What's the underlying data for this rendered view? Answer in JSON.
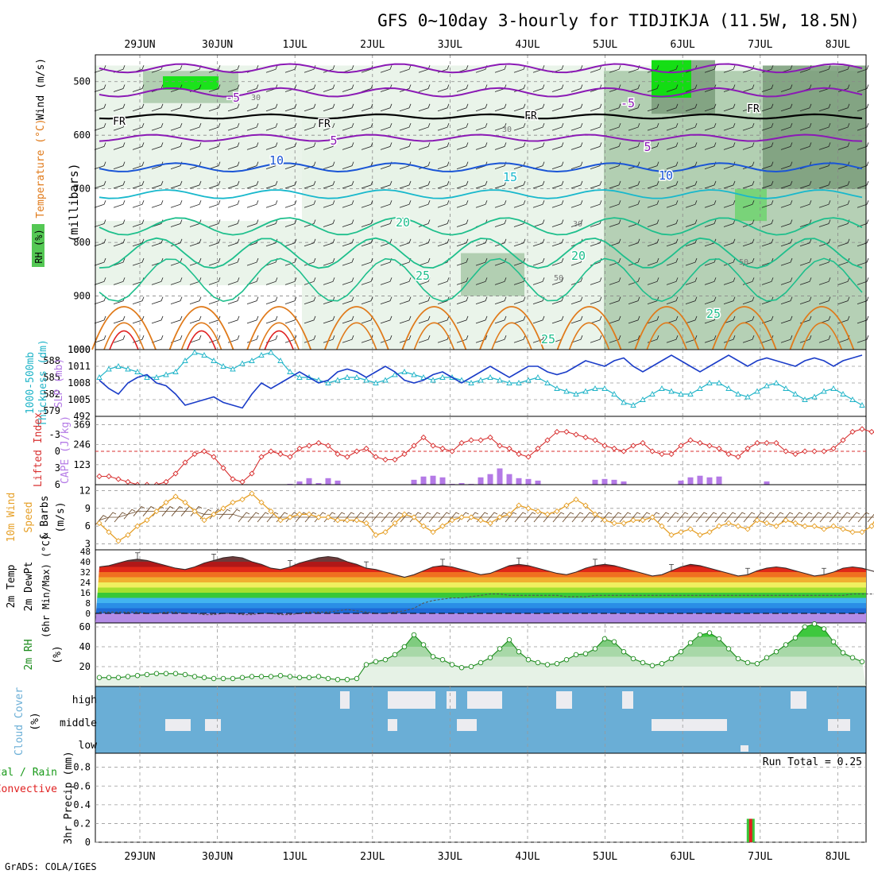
{
  "title": "GFS 0~10day 3-hourly for TIDJIKJA (11.5W, 18.5N)",
  "footer": "GrADS: COLA/IGES",
  "dates": [
    "29JUN",
    "30JUN",
    "1JUL",
    "2JUL",
    "3JUL",
    "4JUL",
    "5JUL",
    "6JUL",
    "7JUL",
    "8JUL"
  ],
  "colors": {
    "rh_light": "#e6f2e6",
    "rh_mid": "#a8c8a8",
    "rh_dark": "#7a9c7a",
    "rh_green": "#6fd46f",
    "rh_bright": "#00e600",
    "purple": "#8b1ab5",
    "blue": "#1a55d6",
    "cyan": "#18b8cc",
    "teal": "#1ebf8c",
    "orange": "#e07a1a",
    "red": "#e02020",
    "slp": "#1a3cc8",
    "thick": "#20b4c8",
    "li": "#d83030",
    "cape": "#b47ae6",
    "wind_speed": "#e6a028",
    "cloud_bg": "#6aaed6"
  },
  "chart_data": [
    {
      "type": "heatmap",
      "panel": "profile",
      "ylabel": "(millibars)",
      "labels_left": [
        "Wind (m/s)",
        "Temperature (°C)",
        "RH (%)"
      ],
      "yticks": [
        500,
        600,
        700,
        800,
        900,
        1000
      ],
      "ylim": [
        450,
        1000
      ],
      "temperature_contour_labels": [
        "-5",
        "-5",
        "5",
        "5",
        "10",
        "10",
        "15",
        "20",
        "20",
        "25",
        "25",
        "25"
      ],
      "rh_contour_labels": [
        "30",
        "30",
        "30",
        "50",
        "50"
      ],
      "freezing_level_label": "FR",
      "freezing_level_mb": 565
    },
    {
      "type": "line",
      "panel": "slp_thickness",
      "labels_left": [
        "1000-500mb",
        "Thickness (dm)",
        "SLP (mb)"
      ],
      "y_thickness_ticks": [
        579,
        582,
        585,
        588
      ],
      "y_slp_ticks": [
        1005,
        1008,
        1011
      ],
      "top_tick": "1000",
      "bottom_tick": "492",
      "series": [
        {
          "name": "SLP (mb)",
          "values": [
            1008.5,
            1007,
            1006,
            1008,
            1009,
            1009.5,
            1008,
            1007.5,
            1006,
            1004,
            1004.5,
            1005,
            1005.5,
            1004.5,
            1004,
            1003.5,
            1006,
            1008,
            1007,
            1008,
            1009,
            1010,
            1009,
            1008,
            1008.5,
            1010,
            1010.5,
            1010,
            1009,
            1010,
            1011,
            1010,
            1008.5,
            1008,
            1008.5,
            1009.5,
            1010,
            1009,
            1008,
            1009,
            1010,
            1011,
            1010,
            1009,
            1010,
            1011,
            1011,
            1010,
            1009.5,
            1010,
            1011,
            1012,
            1011.5,
            1011,
            1012,
            1012.5,
            1011,
            1010,
            1011,
            1012,
            1013,
            1012,
            1011,
            1010,
            1011,
            1012,
            1013,
            1012,
            1011,
            1012,
            1012.5,
            1012,
            1011.5,
            1011,
            1012,
            1012.5,
            1012,
            1011,
            1012,
            1012.5,
            1013
          ]
        },
        {
          "name": "1000-500mb Thickness (dm)",
          "values": [
            585,
            586.5,
            587,
            586.5,
            586,
            585,
            585,
            585.5,
            586,
            588,
            589.5,
            589,
            588,
            587,
            586.5,
            587.5,
            588,
            589,
            589.5,
            588,
            586,
            585,
            585,
            584.5,
            584,
            584.5,
            585,
            585,
            584.5,
            584,
            584.5,
            585.5,
            586,
            585.5,
            585,
            584.5,
            585,
            585,
            584.5,
            584,
            584.5,
            585,
            584.5,
            584,
            584,
            584.5,
            585,
            584,
            583,
            582.5,
            582,
            582.5,
            583,
            583,
            582,
            580.5,
            580,
            581,
            582,
            583,
            582.5,
            582,
            582,
            583,
            584,
            584,
            583,
            582,
            581.5,
            582.5,
            583.5,
            584,
            583,
            582,
            581,
            581.5,
            582.5,
            583,
            582,
            581,
            580
          ]
        }
      ]
    },
    {
      "type": "bar",
      "panel": "lifted_cape",
      "labels_left": [
        "Lifted Index",
        "CAPE (J/kg)"
      ],
      "y_li_ticks": [
        "-3",
        "0",
        "3",
        "6"
      ],
      "y_cape_ticks": [
        "369",
        "246",
        "123"
      ],
      "series": [
        {
          "name": "Lifted Index",
          "values": [
            4.5,
            4.5,
            5,
            5.5,
            6,
            6,
            6,
            5.5,
            4,
            2,
            0.5,
            0,
            1,
            3,
            5,
            5.5,
            4,
            1,
            0,
            0.5,
            1,
            -0.5,
            -1,
            -1.5,
            -1,
            0.5,
            1,
            0,
            -0.5,
            1,
            1.5,
            1.5,
            0.5,
            -1,
            -2.5,
            -1,
            -0.5,
            0,
            -1.5,
            -2,
            -2,
            -2.5,
            -1,
            -0.5,
            0.5,
            1,
            -0.5,
            -2,
            -3.5,
            -3.5,
            -3,
            -2.5,
            -2,
            -1,
            -0.5,
            0,
            -1,
            -1.5,
            0,
            0.5,
            0.5,
            -1,
            -2,
            -1.5,
            -1,
            -0.5,
            0.5,
            1,
            -0.5,
            -1.5,
            -1.5,
            -1.5,
            0,
            0.5,
            0,
            0,
            0,
            -0.5,
            -2,
            -3.5,
            -4,
            -3.5,
            -3,
            -2,
            -2.5
          ]
        },
        {
          "name": "CAPE (J/kg)",
          "values": [
            0,
            0,
            0,
            0,
            0,
            0,
            0,
            0,
            0,
            0,
            0,
            0,
            0,
            0,
            0,
            0,
            0,
            0,
            0,
            0,
            5,
            20,
            40,
            10,
            40,
            25,
            0,
            0,
            0,
            0,
            0,
            0,
            0,
            30,
            50,
            55,
            45,
            5,
            10,
            5,
            45,
            65,
            100,
            65,
            40,
            35,
            25,
            0,
            0,
            0,
            0,
            0,
            30,
            35,
            30,
            20,
            0,
            0,
            0,
            0,
            0,
            25,
            45,
            55,
            45,
            50,
            0,
            0,
            0,
            0,
            20,
            0,
            0,
            0,
            0,
            0,
            0,
            0,
            0,
            0,
            0,
            0,
            0,
            0,
            0
          ]
        }
      ]
    },
    {
      "type": "line",
      "panel": "wind10m",
      "labels_left": [
        "10m Wind",
        "Speed",
        "& Barbs",
        "(m/s)"
      ],
      "yticks": [
        12,
        9,
        6,
        3
      ],
      "series": [
        {
          "name": "10m Wind Speed",
          "values": [
            6.5,
            5,
            3.5,
            4.5,
            6,
            7,
            8.5,
            10,
            11,
            10,
            8.5,
            7,
            8,
            9,
            10,
            10.5,
            11.5,
            10,
            8.5,
            7,
            7.5,
            8,
            8,
            7.5,
            7.5,
            7,
            7,
            7,
            6.5,
            4.5,
            5,
            6.5,
            8,
            7.5,
            6,
            5,
            6,
            7,
            7.5,
            7.5,
            7,
            6.5,
            7.5,
            8,
            9.5,
            9,
            8.5,
            8,
            8.5,
            9.5,
            10.5,
            9.5,
            8,
            7,
            6.5,
            6.5,
            7,
            7,
            7.5,
            6,
            4.5,
            5,
            5.5,
            4.5,
            5,
            6,
            6.5,
            6,
            5.5,
            7,
            6.5,
            6,
            7,
            6.5,
            6,
            6,
            5.5,
            6,
            5.5,
            5,
            5,
            6,
            9,
            8,
            7.5
          ]
        },
        {
          "name": "Wind barbs (trend)",
          "values": [
            7,
            7.5,
            7.5,
            8,
            8.5,
            8.5,
            8.5,
            8.5,
            8.5,
            8.5,
            8.5,
            8,
            8,
            8,
            8,
            7.5,
            7.5,
            7.5,
            7.5,
            7.5,
            7.5,
            7.5,
            7.5,
            7.5,
            7.5,
            7.5,
            7.5,
            7.5,
            7.5,
            7.5,
            7.5,
            7.5,
            7.5,
            7.5,
            7.5,
            7.5,
            7.5,
            7.5,
            7.5,
            7.5,
            7.5,
            7.5,
            7.5,
            7.5,
            7.5,
            7.5,
            7.5,
            7.5,
            7.5,
            7.5,
            7.5,
            7.5,
            7.5,
            7.5,
            7.5,
            7.5,
            7.5,
            7.5,
            7.5,
            7.5,
            7.5,
            7.5,
            7.5,
            7.5,
            7.5,
            7.5,
            7.5,
            7.5,
            7.5,
            7.5,
            7.5,
            7.5,
            7.5,
            7.5,
            7.5,
            7.5,
            7.5,
            7.5,
            7.5,
            7.5,
            7.5,
            7.5,
            7.5,
            7.5,
            7.5
          ]
        }
      ]
    },
    {
      "type": "area",
      "panel": "temp2m",
      "labels_left": [
        "2m Temp",
        "2m DewPt",
        "(6hr Min/Max) (°C)"
      ],
      "yticks": [
        0,
        8,
        16,
        24,
        32,
        40,
        48
      ],
      "series": [
        {
          "name": "2m Temp",
          "values": [
            36,
            37,
            39,
            41,
            42,
            41,
            39,
            37,
            35,
            34,
            36,
            39,
            41,
            43,
            44,
            43,
            40,
            38,
            35,
            34,
            36,
            39,
            41,
            43,
            44,
            43,
            40,
            38,
            35,
            34,
            32,
            30,
            28,
            30,
            33,
            36,
            37,
            36,
            34,
            32,
            30,
            31,
            34,
            37,
            38,
            37,
            35,
            33,
            31,
            30,
            32,
            35,
            37,
            38,
            37,
            35,
            33,
            31,
            29,
            30,
            33,
            36,
            38,
            37,
            35,
            33,
            31,
            29,
            30,
            33,
            35,
            36,
            35,
            33,
            31,
            29,
            30,
            32,
            35,
            36,
            35,
            33,
            31,
            29,
            28,
            27
          ]
        },
        {
          "name": "2m DewPt",
          "values": [
            1,
            1,
            1,
            1,
            1,
            0,
            0,
            1,
            1,
            0,
            0,
            -1,
            -1,
            0,
            0,
            -1,
            -1,
            0,
            0,
            -1,
            -1,
            0,
            1,
            1,
            1,
            2,
            3,
            2,
            1,
            0,
            0,
            1,
            2,
            4,
            8,
            10,
            11,
            12,
            12,
            13,
            14,
            15,
            15,
            14,
            14,
            14,
            14,
            14,
            14,
            13,
            13,
            13,
            14,
            14,
            14,
            14,
            14,
            14,
            14,
            14,
            14,
            14,
            14,
            14,
            14,
            14,
            14,
            14,
            14,
            14,
            14,
            14,
            14,
            14,
            14,
            14,
            14,
            14,
            14,
            15,
            15,
            15,
            15,
            16,
            16,
            16,
            17
          ]
        }
      ]
    },
    {
      "type": "area",
      "panel": "rh2m",
      "labels_left": [
        "2m RH",
        "(%)"
      ],
      "yticks": [
        20,
        40,
        60
      ],
      "series": [
        {
          "name": "2m RH",
          "values": [
            9,
            9,
            9,
            10,
            11,
            12,
            13,
            13,
            13,
            12,
            10,
            9,
            8,
            8,
            8,
            9,
            10,
            10,
            10,
            11,
            10,
            9,
            9,
            10,
            8,
            7,
            7,
            8,
            22,
            25,
            27,
            32,
            40,
            52,
            42,
            30,
            27,
            22,
            19,
            20,
            24,
            29,
            38,
            47,
            35,
            27,
            24,
            22,
            23,
            27,
            32,
            33,
            38,
            48,
            45,
            35,
            28,
            24,
            21,
            23,
            28,
            35,
            44,
            52,
            54,
            48,
            38,
            28,
            24,
            23,
            29,
            35,
            42,
            49,
            60,
            63,
            58,
            45,
            34,
            29,
            25
          ]
        }
      ]
    },
    {
      "type": "bar",
      "panel": "cloud",
      "labels_left": [
        "Cloud Cover",
        "(%)"
      ],
      "ylabels": [
        "high",
        "middle",
        "low"
      ]
    },
    {
      "type": "bar",
      "panel": "precip",
      "labels_left": [
        "Total / Rain",
        "Convective",
        "3hr Precip (mm)"
      ],
      "yticks": [
        "0",
        "0.2",
        "0.4",
        "0.6",
        "0.8"
      ],
      "run_total": "Run Total = 0.25",
      "series": [
        {
          "name": "Total / Rain",
          "values": [
            0.25
          ],
          "x": [
            "6JUL 21Z"
          ]
        },
        {
          "name": "Convective",
          "values": [
            0.25
          ],
          "x": [
            "6JUL 21Z"
          ]
        }
      ]
    }
  ]
}
